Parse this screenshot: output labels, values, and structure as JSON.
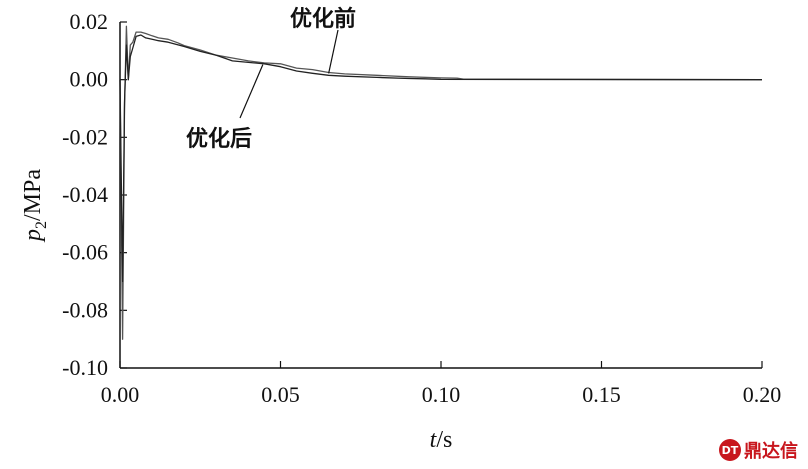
{
  "chart_data": {
    "type": "line",
    "title": "",
    "xlabel": {
      "italic": "t",
      "rest": "/s"
    },
    "ylabel": {
      "italic": "p",
      "sub": "2",
      "rest": "/MPa"
    },
    "xlim": [
      0,
      0.2
    ],
    "ylim": [
      -0.1,
      0.02
    ],
    "xticks": [
      0.0,
      0.05,
      0.1,
      0.15,
      0.2
    ],
    "xtick_labels": [
      "0.00",
      "0.05",
      "0.10",
      "0.15",
      "0.20"
    ],
    "yticks": [
      0.02,
      0.0,
      -0.02,
      -0.04,
      -0.06,
      -0.08,
      -0.1
    ],
    "ytick_labels": [
      "0.02",
      "0.00",
      "-0.02",
      "-0.04",
      "-0.06",
      "-0.08",
      "-0.10"
    ],
    "grid": false,
    "series": [
      {
        "name": "优化前",
        "color": "#555555",
        "x": [
          0.0,
          0.0008,
          0.0014,
          0.002,
          0.0026,
          0.0032,
          0.004,
          0.005,
          0.0065,
          0.008,
          0.01,
          0.012,
          0.015,
          0.018,
          0.02,
          0.025,
          0.03,
          0.035,
          0.04,
          0.045,
          0.05,
          0.055,
          0.06,
          0.065,
          0.07,
          0.08,
          0.09,
          0.1,
          0.105,
          0.107,
          0.2
        ],
        "y": [
          0.0,
          -0.09,
          -0.01,
          0.0185,
          0.0,
          0.012,
          0.013,
          0.0165,
          0.0165,
          0.016,
          0.0152,
          0.0145,
          0.014,
          0.0128,
          0.0118,
          0.0103,
          0.0085,
          0.0075,
          0.0065,
          0.0058,
          0.0055,
          0.004,
          0.0035,
          0.0025,
          0.002,
          0.0015,
          0.001,
          0.0006,
          0.0005,
          0.0002,
          0.0
        ]
      },
      {
        "name": "优化后",
        "color": "#222222",
        "x": [
          0.0,
          0.0008,
          0.0014,
          0.002,
          0.0026,
          0.0032,
          0.004,
          0.005,
          0.0065,
          0.008,
          0.01,
          0.012,
          0.015,
          0.02,
          0.025,
          0.03,
          0.035,
          0.04,
          0.045,
          0.05,
          0.055,
          0.06,
          0.065,
          0.07,
          0.08,
          0.09,
          0.095,
          0.1,
          0.2
        ],
        "y": [
          0.0,
          -0.07,
          -0.008,
          0.012,
          0.0,
          0.008,
          0.011,
          0.015,
          0.0155,
          0.0145,
          0.014,
          0.0135,
          0.013,
          0.0115,
          0.0098,
          0.0085,
          0.0065,
          0.006,
          0.0055,
          0.0045,
          0.003,
          0.0022,
          0.0015,
          0.0012,
          0.0008,
          0.0004,
          0.0003,
          0.0001,
          0.0
        ]
      }
    ],
    "annotations": [
      {
        "text": "优化前",
        "series": 0,
        "at_x": 0.065,
        "at_y": 0.0022
      },
      {
        "text": "优化后",
        "series": 1,
        "at_x": 0.0445,
        "at_y": 0.0052
      }
    ]
  },
  "watermark": {
    "logo": "DT",
    "text": "鼎达信"
  }
}
